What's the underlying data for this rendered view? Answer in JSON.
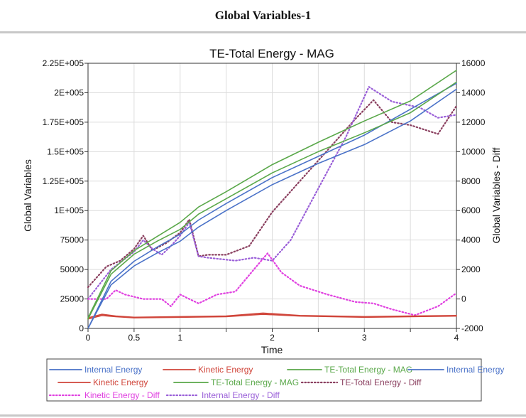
{
  "window": {
    "title": "Global Variables-1"
  },
  "chart_data": {
    "type": "line",
    "title": "TE-Total Energy - MAG",
    "xlabel": "Time",
    "ylabel_left": "Global Variables",
    "ylabel_right": "Global Variables - Diff",
    "xlim": [
      0,
      4
    ],
    "ylim_left": [
      0,
      225000
    ],
    "ylim_right": [
      -2000,
      16000
    ],
    "grid": true,
    "legend_placement": "bottom",
    "x_ticks": [
      0,
      0.5,
      1,
      1.5,
      2,
      2.5,
      3,
      3.5,
      4
    ],
    "x_tick_labels": [
      "0",
      "0.5",
      "1",
      "2",
      "3",
      "4"
    ],
    "x_tick_label_positions": [
      0,
      0.5,
      1,
      2,
      3,
      4
    ],
    "y_left_ticks": [
      0,
      25000,
      50000,
      75000,
      100000,
      125000,
      150000,
      175000,
      200000,
      225000
    ],
    "y_left_tick_labels": [
      "0",
      "25000",
      "50000",
      "75000",
      "1E+005",
      "1.25E+005",
      "1.5E+005",
      "1.75E+005",
      "2E+005",
      "2.25E+005"
    ],
    "y_right_ticks": [
      -2000,
      0,
      2000,
      4000,
      6000,
      8000,
      10000,
      12000,
      14000,
      16000
    ],
    "y_right_tick_labels": [
      "-2000",
      "0",
      "2000",
      "4000",
      "6000",
      "8000",
      "10000",
      "12000",
      "14000",
      "16000"
    ],
    "series": [
      {
        "name": "Internal Energy",
        "axis": "left",
        "color": "#4a72c8",
        "style": "solid",
        "x": [
          0,
          0.25,
          0.5,
          0.75,
          1.0,
          1.2,
          1.5,
          2.0,
          2.5,
          3.0,
          3.5,
          4.0
        ],
        "y": [
          0,
          37000,
          53000,
          64000,
          74000,
          86000,
          100000,
          122000,
          140000,
          156000,
          176000,
          203000
        ]
      },
      {
        "name": "Kinetic Energy",
        "axis": "left",
        "color": "#d0453a",
        "style": "solid",
        "x": [
          0,
          0.15,
          0.3,
          0.5,
          1.0,
          1.5,
          1.9,
          2.3,
          3.0,
          3.5,
          4.0
        ],
        "y": [
          8000,
          11000,
          10000,
          9000,
          9500,
          10000,
          12000,
          10500,
          9500,
          10000,
          10500
        ]
      },
      {
        "name": "TE-Total Energy - MAG",
        "axis": "left",
        "color": "#5aa84a",
        "style": "solid",
        "x": [
          0,
          0.25,
          0.5,
          0.75,
          1.0,
          1.2,
          1.5,
          2.0,
          2.5,
          3.0,
          3.5,
          4.0
        ],
        "y": [
          8000,
          46000,
          63000,
          74000,
          84000,
          97000,
          110000,
          132000,
          150000,
          166000,
          183000,
          209000
        ]
      },
      {
        "name": "Internal Energy",
        "axis": "left",
        "color": "#4a72c8",
        "style": "solid",
        "x": [
          0,
          0.25,
          0.5,
          0.75,
          1.0,
          1.2,
          1.5,
          2.0,
          2.5,
          3.0,
          3.5,
          4.0
        ],
        "y": [
          0,
          40000,
          57000,
          69000,
          80000,
          92000,
          106000,
          128000,
          146000,
          164000,
          186000,
          208000
        ]
      },
      {
        "name": "Kinetic Energy",
        "axis": "left",
        "color": "#d0453a",
        "style": "solid",
        "x": [
          0,
          0.15,
          0.3,
          0.5,
          1.0,
          1.5,
          1.9,
          2.3,
          3.0,
          3.5,
          4.0
        ],
        "y": [
          9000,
          12000,
          10500,
          9500,
          10000,
          10500,
          13000,
          11000,
          10000,
          10500,
          11000
        ]
      },
      {
        "name": "TE-Total Energy - MAG",
        "axis": "left",
        "color": "#5aa84a",
        "style": "solid",
        "x": [
          0,
          0.25,
          0.5,
          0.75,
          1.0,
          1.2,
          1.5,
          2.0,
          2.5,
          3.0,
          3.5,
          4.0
        ],
        "y": [
          9000,
          49000,
          66000,
          78000,
          90000,
          103000,
          116000,
          139000,
          158000,
          176000,
          193000,
          219000
        ]
      },
      {
        "name": "TE-Total Energy  - Diff",
        "axis": "right",
        "color": "#8a3f5f",
        "style": "dotted",
        "x": [
          0,
          0.2,
          0.35,
          0.5,
          0.6,
          0.7,
          0.85,
          1.0,
          1.1,
          1.2,
          1.3,
          1.5,
          1.75,
          2.0,
          2.3,
          2.6,
          2.9,
          3.1,
          3.3,
          3.5,
          3.8,
          4.0
        ],
        "y": [
          800,
          2200,
          2600,
          3400,
          4300,
          3300,
          3800,
          4500,
          5400,
          2900,
          3000,
          3000,
          3600,
          5900,
          8000,
          10100,
          12200,
          13500,
          12000,
          11800,
          11200,
          13100
        ]
      },
      {
        "name": "Kinetic Energy - Diff",
        "axis": "right",
        "color": "#e040e0",
        "style": "dotted",
        "x": [
          0,
          0.2,
          0.3,
          0.4,
          0.6,
          0.8,
          0.9,
          1.0,
          1.1,
          1.2,
          1.4,
          1.6,
          1.8,
          1.95,
          2.1,
          2.3,
          2.6,
          2.9,
          3.1,
          3.3,
          3.55,
          3.8,
          4.0
        ],
        "y": [
          0,
          0,
          600,
          300,
          0,
          0,
          -500,
          300,
          0,
          -300,
          300,
          500,
          2000,
          3100,
          1800,
          900,
          300,
          -200,
          -300,
          -700,
          -1100,
          -500,
          400
        ]
      },
      {
        "name": "Internal Energy - Diff",
        "axis": "right",
        "color": "#9a5fd8",
        "style": "dotted",
        "x": [
          0,
          0.25,
          0.5,
          0.6,
          0.7,
          0.8,
          0.9,
          1.0,
          1.1,
          1.2,
          1.3,
          1.6,
          1.8,
          2.0,
          2.2,
          2.5,
          2.8,
          3.05,
          3.3,
          3.6,
          3.8,
          4.0
        ],
        "y": [
          0,
          2000,
          3200,
          4000,
          3400,
          3000,
          3600,
          4300,
          5200,
          2900,
          2800,
          2600,
          2800,
          2600,
          4000,
          7500,
          11000,
          14400,
          13400,
          13000,
          12300,
          12500
        ]
      }
    ],
    "legend": [
      [
        {
          "label": "Internal Energy",
          "color": "#4a72c8",
          "style": "solid"
        },
        {
          "label": "Kinetic Energy",
          "color": "#d0453a",
          "style": "solid"
        },
        {
          "label": "TE-Total Energy - MAG",
          "color": "#5aa84a",
          "style": "solid"
        },
        {
          "label": "Internal Energy",
          "color": "#4a72c8",
          "style": "solid"
        }
      ],
      [
        {
          "label": "Kinetic Energy",
          "color": "#d0453a",
          "style": "solid"
        },
        {
          "label": "TE-Total Energy - MAG",
          "color": "#5aa84a",
          "style": "solid"
        },
        {
          "label": "TE-Total Energy  - Diff",
          "color": "#8a3f5f",
          "style": "dotted"
        }
      ],
      [
        {
          "label": "Kinetic Energy - Diff",
          "color": "#e040e0",
          "style": "dotted"
        },
        {
          "label": "Internal Energy - Diff",
          "color": "#9a5fd8",
          "style": "dotted"
        }
      ]
    ]
  }
}
